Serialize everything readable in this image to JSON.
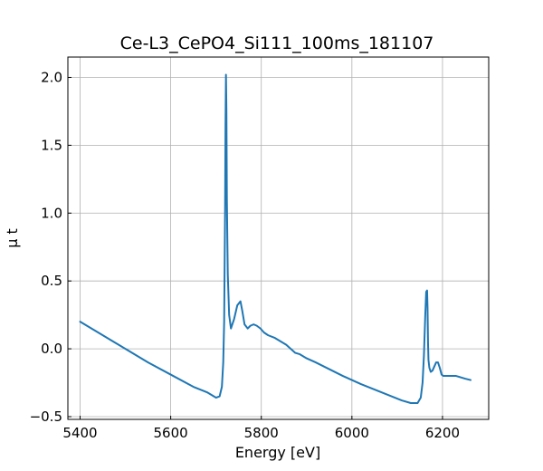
{
  "chart_data": {
    "type": "line",
    "title": "Ce-L3_CePO4_Si111_100ms_181107",
    "xlabel": "Energy [eV]",
    "ylabel": "μ t",
    "xlim": [
      5373,
      6302
    ],
    "ylim": [
      -0.52,
      2.15
    ],
    "xticks": [
      5400,
      5600,
      5800,
      6000,
      6200
    ],
    "yticks": [
      -0.5,
      0.0,
      0.5,
      1.0,
      1.5,
      2.0
    ],
    "ytick_labels": [
      "−0.5",
      "0.0",
      "0.5",
      "1.0",
      "1.5",
      "2.0"
    ],
    "grid": true,
    "series": [
      {
        "color": "#1f77b4",
        "x": [
          5400,
          5450,
          5500,
          5550,
          5600,
          5650,
          5680,
          5700,
          5708,
          5713,
          5716,
          5718,
          5720,
          5721,
          5722,
          5723,
          5724,
          5726,
          5729,
          5733,
          5740,
          5747,
          5754,
          5758,
          5763,
          5770,
          5776,
          5783,
          5790,
          5798,
          5806,
          5815,
          5830,
          5845,
          5855,
          5865,
          5875,
          5885,
          5900,
          5920,
          5950,
          5980,
          6000,
          6020,
          6050,
          6080,
          6110,
          6130,
          6145,
          6152,
          6156,
          6159,
          6162,
          6164,
          6166,
          6167,
          6168,
          6169,
          6171,
          6174,
          6178,
          6182,
          6186,
          6190,
          6194,
          6198,
          6202,
          6206,
          6212,
          6220,
          6230,
          6240,
          6250,
          6262
        ],
        "y": [
          0.2,
          0.1,
          0.0,
          -0.1,
          -0.19,
          -0.28,
          -0.32,
          -0.36,
          -0.35,
          -0.28,
          -0.1,
          0.2,
          1.0,
          1.65,
          2.02,
          1.75,
          1.1,
          0.55,
          0.25,
          0.15,
          0.22,
          0.32,
          0.35,
          0.28,
          0.18,
          0.15,
          0.17,
          0.18,
          0.17,
          0.15,
          0.12,
          0.1,
          0.08,
          0.05,
          0.03,
          0.0,
          -0.03,
          -0.04,
          -0.07,
          -0.1,
          -0.15,
          -0.2,
          -0.23,
          -0.26,
          -0.3,
          -0.34,
          -0.38,
          -0.4,
          -0.4,
          -0.36,
          -0.25,
          -0.05,
          0.25,
          0.42,
          0.43,
          0.3,
          0.05,
          -0.08,
          -0.14,
          -0.17,
          -0.16,
          -0.13,
          -0.1,
          -0.1,
          -0.14,
          -0.19,
          -0.2,
          -0.2,
          -0.2,
          -0.2,
          -0.2,
          -0.21,
          -0.22,
          -0.23
        ]
      }
    ]
  }
}
